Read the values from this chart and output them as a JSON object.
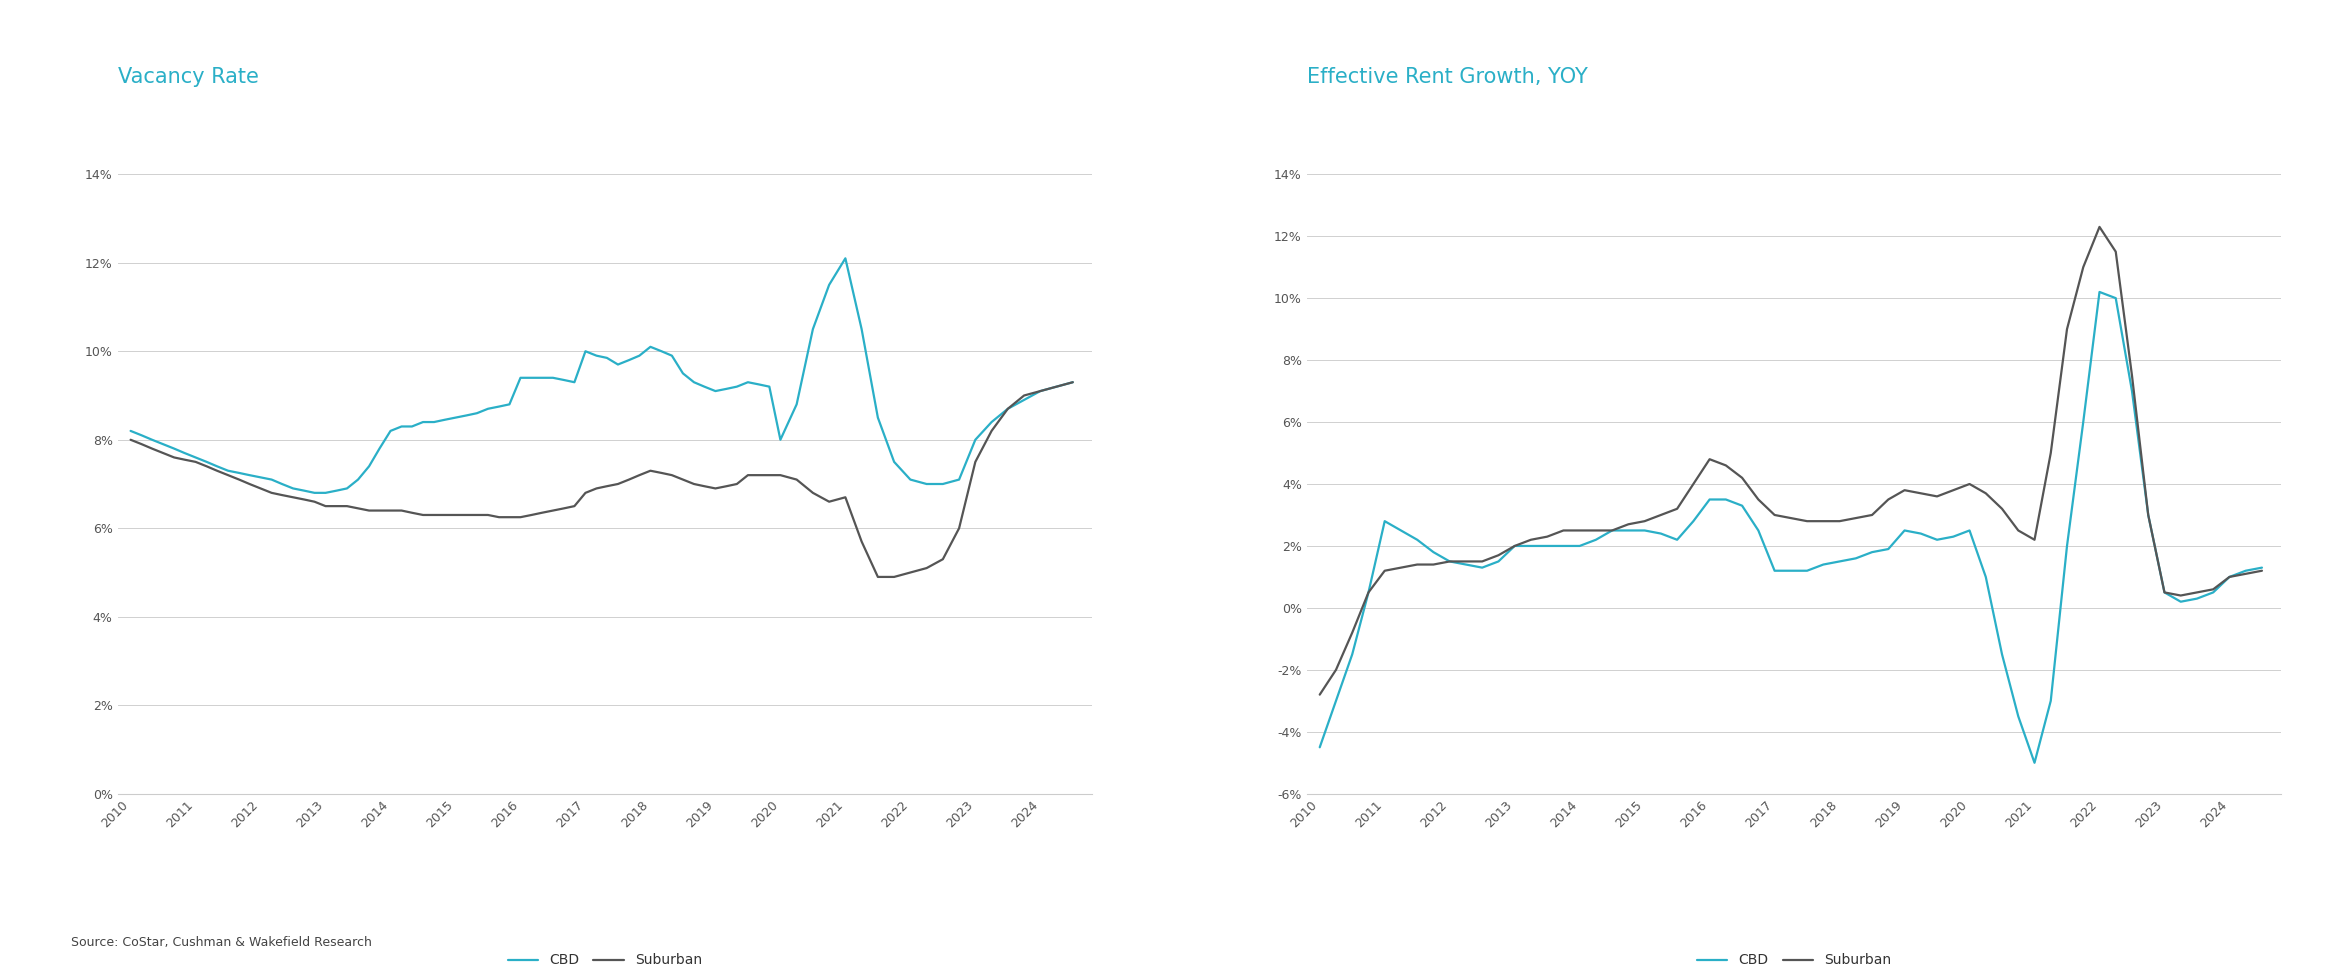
{
  "title1": "Vacancy Rate",
  "title2": "Effective Rent Growth, YOY",
  "source": "Source: CoStar, Cushman & Wakefield Research",
  "cbd_color": "#2aafc7",
  "suburban_color": "#555555",
  "line_width": 1.6,
  "title_color": "#2aafc7",
  "title_fontsize": 15,
  "label_fontsize": 10,
  "tick_fontsize": 9,
  "source_fontsize": 9,
  "background_color": "#ffffff",
  "vacancy_years": [
    2010.0,
    2010.17,
    2010.33,
    2010.5,
    2010.67,
    2010.83,
    2011.0,
    2011.17,
    2011.33,
    2011.5,
    2011.67,
    2011.83,
    2012.0,
    2012.17,
    2012.33,
    2012.5,
    2012.67,
    2012.83,
    2013.0,
    2013.17,
    2013.33,
    2013.5,
    2013.67,
    2013.83,
    2014.0,
    2014.17,
    2014.33,
    2014.5,
    2014.67,
    2014.83,
    2015.0,
    2015.17,
    2015.33,
    2015.5,
    2015.67,
    2015.83,
    2016.0,
    2016.17,
    2016.33,
    2016.5,
    2016.67,
    2016.83,
    2017.0,
    2017.17,
    2017.33,
    2017.5,
    2017.67,
    2017.83,
    2018.0,
    2018.17,
    2018.33,
    2018.5,
    2018.67,
    2018.83,
    2019.0,
    2019.17,
    2019.33,
    2019.5,
    2019.67,
    2019.83,
    2020.0,
    2020.25,
    2020.5,
    2020.75,
    2021.0,
    2021.25,
    2021.5,
    2021.75,
    2022.0,
    2022.25,
    2022.5,
    2022.75,
    2023.0,
    2023.25,
    2023.5,
    2023.75,
    2024.0,
    2024.25,
    2024.5
  ],
  "vacancy_cbd": [
    8.2,
    8.1,
    8.0,
    7.9,
    7.8,
    7.7,
    7.6,
    7.5,
    7.4,
    7.3,
    7.25,
    7.2,
    7.15,
    7.1,
    7.0,
    6.9,
    6.85,
    6.8,
    6.8,
    6.85,
    6.9,
    7.1,
    7.4,
    7.8,
    8.2,
    8.3,
    8.3,
    8.4,
    8.4,
    8.45,
    8.5,
    8.55,
    8.6,
    8.7,
    8.75,
    8.8,
    9.4,
    9.4,
    9.4,
    9.4,
    9.35,
    9.3,
    10.0,
    9.9,
    9.85,
    9.7,
    9.8,
    9.9,
    10.1,
    10.0,
    9.9,
    9.5,
    9.3,
    9.2,
    9.1,
    9.15,
    9.2,
    9.3,
    9.25,
    9.2,
    8.0,
    8.8,
    10.5,
    11.5,
    12.1,
    10.5,
    8.5,
    7.5,
    7.1,
    7.0,
    7.0,
    7.1,
    8.0,
    8.4,
    8.7,
    8.9,
    9.1,
    9.2,
    9.3
  ],
  "vacancy_suburban": [
    8.0,
    7.9,
    7.8,
    7.7,
    7.6,
    7.55,
    7.5,
    7.4,
    7.3,
    7.2,
    7.1,
    7.0,
    6.9,
    6.8,
    6.75,
    6.7,
    6.65,
    6.6,
    6.5,
    6.5,
    6.5,
    6.45,
    6.4,
    6.4,
    6.4,
    6.4,
    6.35,
    6.3,
    6.3,
    6.3,
    6.3,
    6.3,
    6.3,
    6.3,
    6.25,
    6.25,
    6.25,
    6.3,
    6.35,
    6.4,
    6.45,
    6.5,
    6.8,
    6.9,
    6.95,
    7.0,
    7.1,
    7.2,
    7.3,
    7.25,
    7.2,
    7.1,
    7.0,
    6.95,
    6.9,
    6.95,
    7.0,
    7.2,
    7.2,
    7.2,
    7.2,
    7.1,
    6.8,
    6.6,
    6.7,
    5.7,
    4.9,
    4.9,
    5.0,
    5.1,
    5.3,
    6.0,
    7.5,
    8.2,
    8.7,
    9.0,
    9.1,
    9.2,
    9.3
  ],
  "rent_years": [
    2010.0,
    2010.25,
    2010.5,
    2010.75,
    2011.0,
    2011.25,
    2011.5,
    2011.75,
    2012.0,
    2012.25,
    2012.5,
    2012.75,
    2013.0,
    2013.25,
    2013.5,
    2013.75,
    2014.0,
    2014.25,
    2014.5,
    2014.75,
    2015.0,
    2015.25,
    2015.5,
    2015.75,
    2016.0,
    2016.25,
    2016.5,
    2016.75,
    2017.0,
    2017.25,
    2017.5,
    2017.75,
    2018.0,
    2018.25,
    2018.5,
    2018.75,
    2019.0,
    2019.25,
    2019.5,
    2019.75,
    2020.0,
    2020.25,
    2020.5,
    2020.75,
    2021.0,
    2021.25,
    2021.5,
    2021.75,
    2022.0,
    2022.25,
    2022.5,
    2022.75,
    2023.0,
    2023.25,
    2023.5,
    2023.75,
    2024.0,
    2024.25,
    2024.5
  ],
  "rent_cbd": [
    -4.5,
    -3.0,
    -1.5,
    0.5,
    2.8,
    2.5,
    2.2,
    1.8,
    1.5,
    1.4,
    1.3,
    1.5,
    2.0,
    2.0,
    2.0,
    2.0,
    2.0,
    2.2,
    2.5,
    2.5,
    2.5,
    2.4,
    2.2,
    2.8,
    3.5,
    3.5,
    3.3,
    2.5,
    1.2,
    1.2,
    1.2,
    1.4,
    1.5,
    1.6,
    1.8,
    1.9,
    2.5,
    2.4,
    2.2,
    2.3,
    2.5,
    1.0,
    -1.5,
    -3.5,
    -5.0,
    -3.0,
    2.0,
    6.0,
    10.2,
    10.0,
    7.0,
    3.0,
    0.5,
    0.2,
    0.3,
    0.5,
    1.0,
    1.2,
    1.3
  ],
  "rent_suburban": [
    -2.8,
    -2.0,
    -0.8,
    0.5,
    1.2,
    1.3,
    1.4,
    1.4,
    1.5,
    1.5,
    1.5,
    1.7,
    2.0,
    2.2,
    2.3,
    2.5,
    2.5,
    2.5,
    2.5,
    2.7,
    2.8,
    3.0,
    3.2,
    4.0,
    4.8,
    4.6,
    4.2,
    3.5,
    3.0,
    2.9,
    2.8,
    2.8,
    2.8,
    2.9,
    3.0,
    3.5,
    3.8,
    3.7,
    3.6,
    3.8,
    4.0,
    3.7,
    3.2,
    2.5,
    2.2,
    5.0,
    9.0,
    11.0,
    12.3,
    11.5,
    7.5,
    3.0,
    0.5,
    0.4,
    0.5,
    0.6,
    1.0,
    1.1,
    1.2
  ],
  "vacancy_ylim": [
    0,
    0.14
  ],
  "vacancy_yticks": [
    0,
    0.02,
    0.04,
    0.06,
    0.08,
    0.1,
    0.12,
    0.14
  ],
  "rent_ylim": [
    -0.06,
    0.14
  ],
  "rent_yticks": [
    -0.06,
    -0.04,
    -0.02,
    0.0,
    0.02,
    0.04,
    0.06,
    0.08,
    0.1,
    0.12,
    0.14
  ],
  "xticks": [
    2010,
    2011,
    2012,
    2013,
    2014,
    2015,
    2016,
    2017,
    2018,
    2019,
    2020,
    2021,
    2022,
    2023,
    2024
  ]
}
